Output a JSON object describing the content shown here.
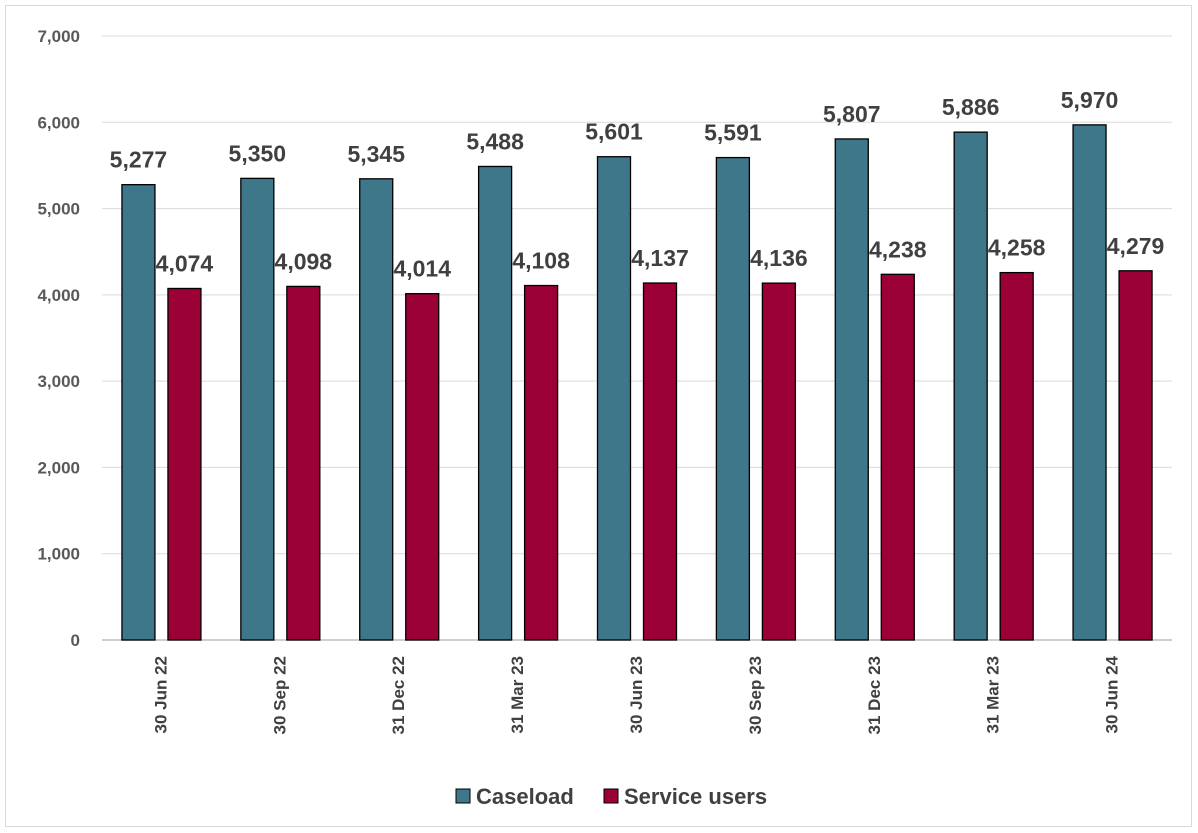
{
  "chart_data": {
    "type": "bar",
    "categories": [
      "30 Jun 22",
      "30 Sep 22",
      "31 Dec 22",
      "31 Mar 23",
      "30 Jun 23",
      "30 Sep 23",
      "31 Dec 23",
      "31 Mar 23",
      "30 Jun 24"
    ],
    "series": [
      {
        "name": "Caseload",
        "values": [
          5277,
          5350,
          5345,
          5488,
          5601,
          5591,
          5807,
          5886,
          5970
        ],
        "color": "#3e7789"
      },
      {
        "name": "Service users",
        "values": [
          4074,
          4098,
          4014,
          4108,
          4137,
          4136,
          4238,
          4258,
          4279
        ],
        "color": "#9b0036"
      }
    ],
    "ylim": [
      0,
      7000
    ],
    "yticks": [
      0,
      1000,
      2000,
      3000,
      4000,
      5000,
      6000,
      7000
    ],
    "ytick_labels": [
      "0",
      "1,000",
      "2,000",
      "3,000",
      "4,000",
      "5,000",
      "6,000",
      "7,000"
    ],
    "grid": true,
    "legend": "bottom",
    "title": "",
    "xlabel": "",
    "ylabel": ""
  }
}
